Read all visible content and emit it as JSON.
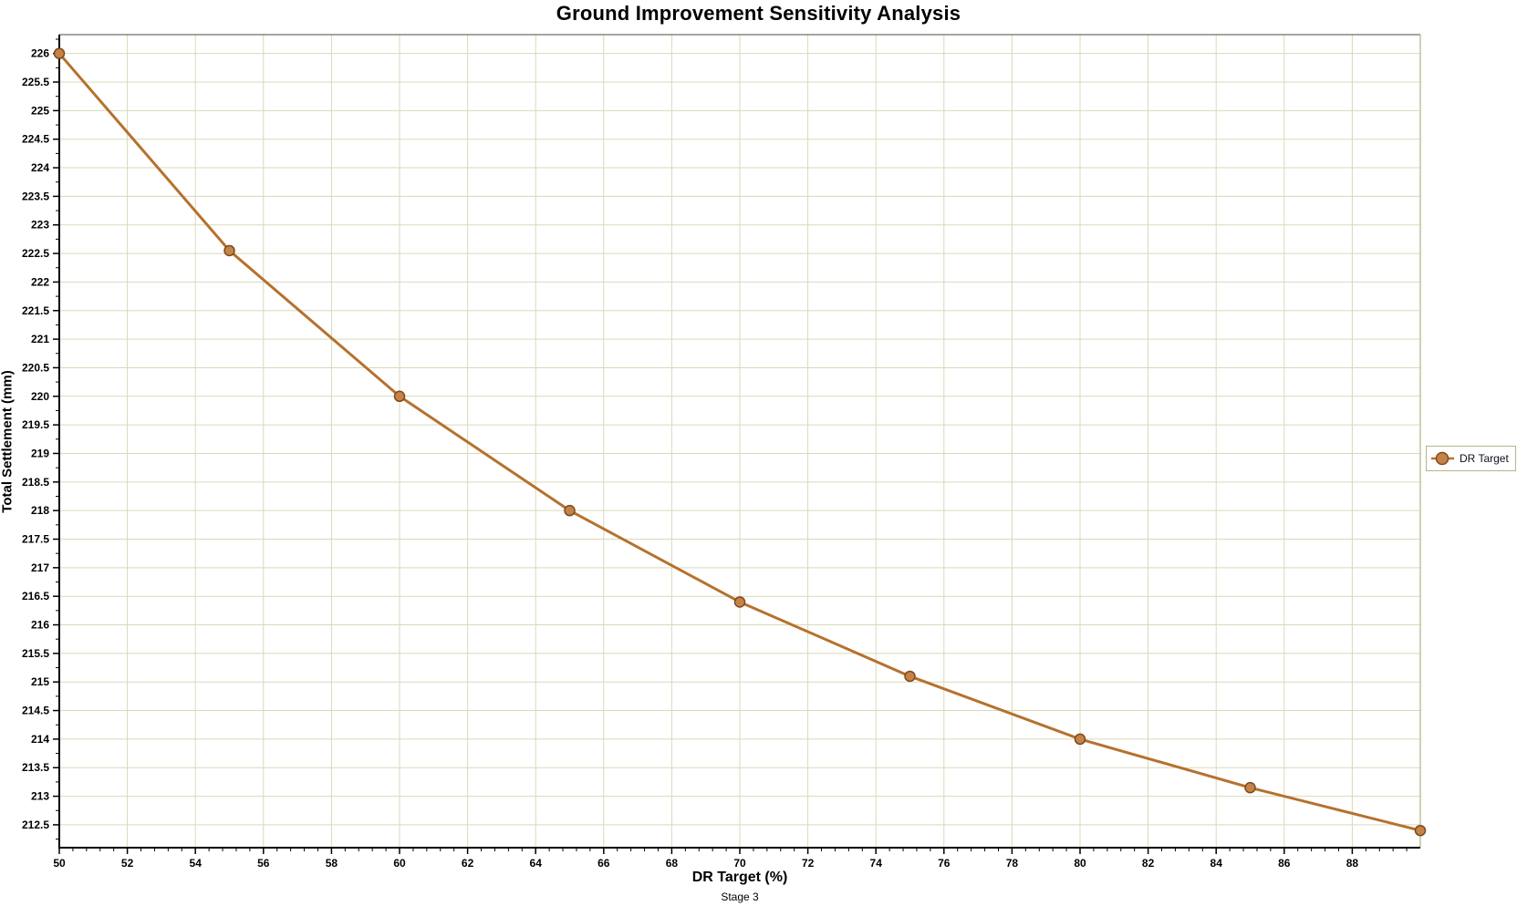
{
  "chart_data": {
    "type": "line",
    "title": "Ground Improvement Sensitivity Analysis",
    "xlabel": "DR Target (%)",
    "xlabel_sub": "Stage 3",
    "ylabel": "Total Settlement (mm)",
    "series": [
      {
        "name": "DR Target",
        "x": [
          50,
          55,
          60,
          65,
          70,
          75,
          80,
          85,
          90
        ],
        "y": [
          226.0,
          222.55,
          220.0,
          218.0,
          216.4,
          215.1,
          214.0,
          213.15,
          212.4
        ]
      }
    ],
    "xlim": [
      50,
      90
    ],
    "ylim": [
      212.1,
      226.33
    ],
    "x_ticks": [
      50,
      52,
      54,
      56,
      58,
      60,
      62,
      64,
      66,
      68,
      70,
      72,
      74,
      76,
      78,
      80,
      82,
      84,
      86,
      88
    ],
    "x_minor_step": 0.4,
    "y_ticks": [
      212.5,
      213,
      213.5,
      214,
      214.5,
      215,
      215.5,
      216,
      216.5,
      217,
      217.5,
      218,
      218.5,
      219,
      219.5,
      220,
      220.5,
      221,
      221.5,
      222,
      222.5,
      223,
      223.5,
      224,
      224.5,
      225,
      225.5,
      226
    ],
    "y_minor_step": 0.25,
    "grid": true,
    "legend": {
      "position": "right",
      "entries": [
        "DR Target"
      ]
    },
    "colors": {
      "line": "#b5712d",
      "marker_fill": "#c5834a",
      "marker_stroke": "#7d4a1c",
      "grid": "#d9d9bc",
      "plot_border_right": "#c2c298",
      "plot_border_top": "#4a4a42",
      "axis": "#000000",
      "legend_border": "#b5b58a",
      "text": "#000000"
    }
  }
}
